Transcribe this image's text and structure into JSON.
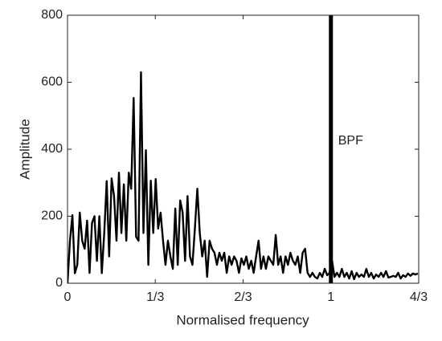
{
  "chart_data": {
    "type": "line",
    "xlabel": "Normalised frequency",
    "ylabel": "Amplitude",
    "xlim": [
      0,
      1.3333
    ],
    "ylim": [
      0,
      800
    ],
    "xticks": [
      0,
      {
        "value": 0.3333,
        "label": "1/3"
      },
      {
        "value": 0.6667,
        "label": "2/3"
      },
      1,
      {
        "value": 1.3333,
        "label": "4/3"
      }
    ],
    "yticks": [
      0,
      200,
      400,
      600,
      800
    ],
    "grid": false,
    "vlines": [
      {
        "x": 1,
        "label": "BPF",
        "color": "#000000"
      }
    ],
    "x": [
      0,
      0.0093,
      0.0186,
      0.0279,
      0.0372,
      0.0465,
      0.0558,
      0.0651,
      0.0744,
      0.0837,
      0.093,
      0.1023,
      0.1116,
      0.1209,
      0.1302,
      0.1395,
      0.1488,
      0.1581,
      0.1674,
      0.1767,
      0.186,
      0.1953,
      0.2046,
      0.2139,
      0.2232,
      0.2325,
      0.2418,
      0.2511,
      0.2604,
      0.2697,
      0.279,
      0.2883,
      0.2976,
      0.3069,
      0.3162,
      0.3255,
      0.3348,
      0.3441,
      0.3534,
      0.3627,
      0.372,
      0.3813,
      0.3906,
      0.3999,
      0.4092,
      0.4185,
      0.4278,
      0.4371,
      0.4464,
      0.4557,
      0.465,
      0.4743,
      0.4836,
      0.4929,
      0.5022,
      0.5115,
      0.5208,
      0.5301,
      0.5394,
      0.5487,
      0.558,
      0.5673,
      0.5766,
      0.5859,
      0.5952,
      0.6045,
      0.6138,
      0.6231,
      0.6324,
      0.6417,
      0.651,
      0.6603,
      0.6696,
      0.6789,
      0.6882,
      0.6975,
      0.7068,
      0.7161,
      0.7254,
      0.7347,
      0.744,
      0.7533,
      0.7626,
      0.7719,
      0.7812,
      0.7905,
      0.7998,
      0.8091,
      0.8184,
      0.8277,
      0.837,
      0.8463,
      0.8556,
      0.8649,
      0.8742,
      0.8835,
      0.8928,
      0.9021,
      0.9114,
      0.9207,
      0.93,
      0.9393,
      0.9486,
      0.9579,
      0.9672,
      0.9765,
      0.9858,
      0.9951,
      1.0044,
      1.0137,
      1.023,
      1.0323,
      1.0416,
      1.0509,
      1.0602,
      1.0695,
      1.0788,
      1.0881,
      1.0974,
      1.1067,
      1.116,
      1.1253,
      1.1346,
      1.1439,
      1.1532,
      1.1625,
      1.1718,
      1.1811,
      1.1904,
      1.1997,
      1.209,
      1.2183,
      1.2276,
      1.2369,
      1.2462,
      1.2555,
      1.2648,
      1.2741,
      1.2834,
      1.2927,
      1.302,
      1.3113,
      1.3206,
      1.3299
    ],
    "series": [
      {
        "color": "#000000",
        "values": [
          0,
          127,
          203,
          30,
          55,
          211,
          127,
          103,
          187,
          31,
          180,
          200,
          67,
          200,
          30,
          150,
          305,
          80,
          313,
          260,
          127,
          330,
          150,
          295,
          127,
          330,
          282,
          553,
          139,
          127,
          630,
          150,
          397,
          55,
          306,
          150,
          311,
          163,
          211,
          127,
          55,
          127,
          80,
          43,
          223,
          55,
          247,
          211,
          67,
          260,
          80,
          55,
          163,
          282,
          150,
          80,
          127,
          19,
          127,
          103,
          91,
          55,
          91,
          67,
          91,
          31,
          80,
          55,
          80,
          67,
          31,
          74,
          55,
          80,
          43,
          67,
          31,
          80,
          127,
          43,
          80,
          43,
          80,
          67,
          55,
          144,
          55,
          80,
          31,
          80,
          55,
          91,
          67,
          55,
          80,
          31,
          91,
          103,
          31,
          19,
          31,
          19,
          14,
          31,
          19,
          43,
          24,
          31,
          67,
          19,
          31,
          19,
          43,
          19,
          31,
          14,
          36,
          12,
          31,
          19,
          26,
          19,
          43,
          19,
          31,
          14,
          26,
          19,
          31,
          19,
          36,
          17,
          19,
          22,
          19,
          31,
          14,
          24,
          19,
          29,
          22,
          29,
          26,
          29
        ]
      }
    ]
  }
}
